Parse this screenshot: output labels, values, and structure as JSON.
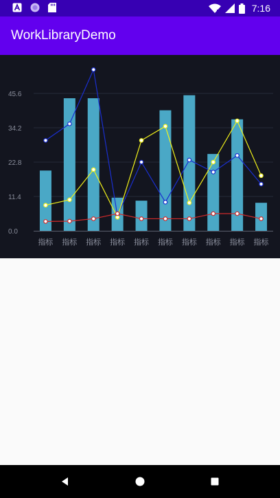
{
  "status_bar": {
    "time": "7:16",
    "icons": [
      "a-notification-icon",
      "circle-notification-icon",
      "sd-card-icon",
      "wifi-icon",
      "signal-icon",
      "battery-icon"
    ]
  },
  "app_bar": {
    "title": "WorkLibraryDemo",
    "color": "#6200ee"
  },
  "chart_data": {
    "type": "bar",
    "categories": [
      "指标",
      "指标",
      "指标",
      "指标",
      "指标",
      "指标",
      "指标",
      "指标",
      "指标",
      "指标"
    ],
    "yticks": [
      "0.0",
      "11.4",
      "22.8",
      "34.2",
      "45.6"
    ],
    "ylim": [
      0,
      57
    ],
    "grid": true,
    "bar_color": "#4aa8c6",
    "bars": [
      20,
      44,
      44,
      11,
      10,
      40,
      45,
      25.5,
      37,
      9.3
    ],
    "series": [
      {
        "values": [
          30,
          35.5,
          53.5,
          5,
          22.8,
          9.5,
          23.5,
          19.5,
          25,
          15.5
        ],
        "color": "#1a2fd0"
      },
      {
        "values": [
          8.5,
          10.3,
          20.3,
          4.5,
          30,
          34.7,
          9.3,
          22.8,
          36.5,
          18.3
        ],
        "color": "#f2f21a"
      },
      {
        "values": [
          3.1,
          3.2,
          4,
          5.7,
          4,
          4,
          4,
          5.7,
          5.7,
          4
        ],
        "color": "#d22a2a"
      }
    ]
  },
  "nav_bar": {
    "buttons": [
      "back",
      "home",
      "recents"
    ]
  }
}
